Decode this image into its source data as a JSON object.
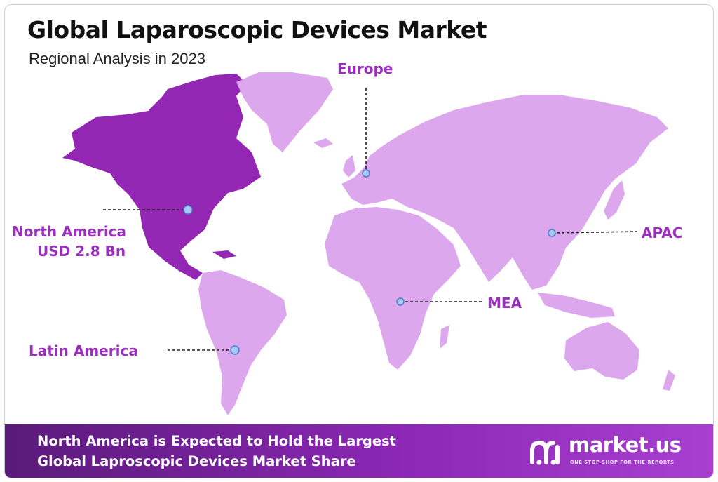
{
  "title": "Global Laparoscopic Devices Market",
  "subtitle": "Regional Analysis in 2023",
  "colors": {
    "land": "#dca7ec",
    "north_america": "#9327b3",
    "accent": "#9a2fbf",
    "footer_start": "#5a1a7a",
    "footer_end": "#a83fd0",
    "marker": "#a9c7f5"
  },
  "regions": [
    {
      "id": "north-america",
      "name": "North America",
      "value": "USD 2.8 Bn",
      "highlighted": true
    },
    {
      "id": "europe",
      "name": "Europe",
      "value": "",
      "highlighted": false
    },
    {
      "id": "apac",
      "name": "APAC",
      "value": "",
      "highlighted": false
    },
    {
      "id": "mea",
      "name": "MEA",
      "value": "",
      "highlighted": false
    },
    {
      "id": "latin-america",
      "name": "Latin America",
      "value": "",
      "highlighted": false
    }
  ],
  "footer": {
    "line1": "North America is Expected to Hold the Largest",
    "line2": "Global Laproscopic Devices Market Share"
  },
  "brand": {
    "name": "market.us",
    "tagline": "ONE STOP SHOP FOR THE REPORTS"
  },
  "icons": [
    "market-us-logo-icon",
    "location-marker-icon"
  ]
}
